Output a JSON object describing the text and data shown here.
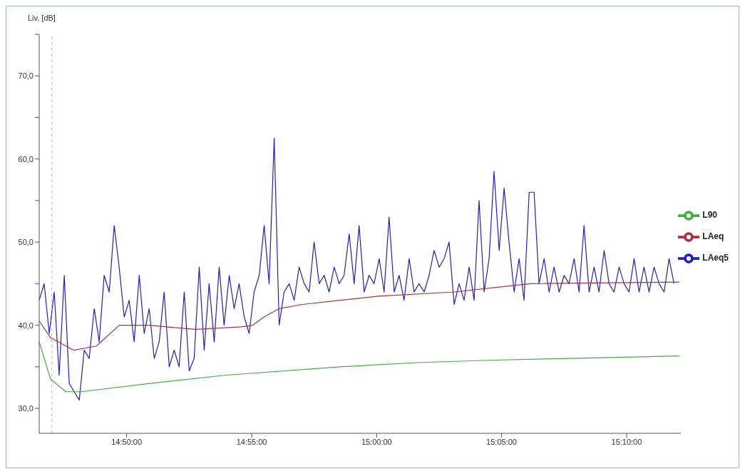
{
  "chart_data": {
    "type": "line",
    "ylabel": "Liv. [dB]",
    "xlim": [
      14.775,
      15.203
    ],
    "ylim": [
      27,
      75
    ],
    "xticks": [
      {
        "value": 14.8333,
        "label": "14:50:00"
      },
      {
        "value": 14.9167,
        "label": "14:55:00"
      },
      {
        "value": 15.0,
        "label": "15:00:00"
      },
      {
        "value": 15.0833,
        "label": "15:05:00"
      },
      {
        "value": 15.1667,
        "label": "15:10:00"
      }
    ],
    "yticks": [
      {
        "value": 30,
        "label": "30,0"
      },
      {
        "value": 35,
        "label": null
      },
      {
        "value": 40,
        "label": "40,0"
      },
      {
        "value": 45,
        "label": null
      },
      {
        "value": 50,
        "label": "50,0"
      },
      {
        "value": 55,
        "label": null
      },
      {
        "value": 60,
        "label": "60,0"
      },
      {
        "value": 65,
        "label": null
      },
      {
        "value": 70,
        "label": "70,0"
      },
      {
        "value": 75,
        "label": null
      }
    ],
    "grid": false,
    "legend": "right",
    "marker": "none",
    "line_style": "solid",
    "ref_lines": [
      {
        "axis": "x",
        "value": 14.7833,
        "label": null,
        "color": "#b8b8c8",
        "line_style": "dashed"
      }
    ],
    "series": [
      {
        "name": "LAeq5",
        "color": "#2020c0",
        "x": [
          14.775,
          14.7783,
          14.7817,
          14.785,
          14.7883,
          14.7917,
          14.795,
          14.7983,
          14.8017,
          14.805,
          14.8083,
          14.8117,
          14.815,
          14.8183,
          14.8217,
          14.825,
          14.8283,
          14.8317,
          14.835,
          14.8383,
          14.8417,
          14.845,
          14.8483,
          14.8517,
          14.855,
          14.8583,
          14.8617,
          14.865,
          14.8683,
          14.8717,
          14.875,
          14.8783,
          14.8817,
          14.885,
          14.8883,
          14.8917,
          14.895,
          14.8983,
          14.9017,
          14.905,
          14.9083,
          14.9117,
          14.915,
          14.9183,
          14.9217,
          14.925,
          14.9283,
          14.9317,
          14.935,
          14.9383,
          14.9417,
          14.945,
          14.9483,
          14.9517,
          14.955,
          14.9583,
          14.9617,
          14.965,
          14.9683,
          14.9717,
          14.975,
          14.9783,
          14.9817,
          14.985,
          14.9883,
          14.9917,
          14.995,
          14.9983,
          15.0017,
          15.005,
          15.0083,
          15.0117,
          15.015,
          15.0183,
          15.0217,
          15.025,
          15.0283,
          15.0317,
          15.035,
          15.0383,
          15.0417,
          15.045,
          15.0483,
          15.0517,
          15.055,
          15.0583,
          15.0617,
          15.065,
          15.0683,
          15.0717,
          15.075,
          15.0783,
          15.0817,
          15.085,
          15.0883,
          15.0917,
          15.095,
          15.0983,
          15.1017,
          15.105,
          15.1083,
          15.1117,
          15.115,
          15.1183,
          15.1217,
          15.125,
          15.1283,
          15.1317,
          15.135,
          15.1383,
          15.1417,
          15.145,
          15.1483,
          15.1517,
          15.155,
          15.1583,
          15.1617,
          15.165,
          15.1683,
          15.1717,
          15.175,
          15.1783,
          15.1817,
          15.185,
          15.1883,
          15.1917,
          15.195,
          15.1983
        ],
        "values": [
          43,
          45,
          39,
          44,
          34,
          46,
          33,
          32,
          31,
          37,
          36,
          42,
          38,
          46,
          44,
          52,
          47,
          41,
          43,
          38,
          46,
          39,
          42,
          36,
          38,
          44,
          35,
          37,
          35,
          44,
          34.5,
          36,
          47,
          37,
          45,
          38,
          47,
          40,
          46,
          42,
          45,
          41,
          39,
          44,
          46,
          52,
          45,
          62.5,
          40,
          44,
          45,
          43,
          47,
          45,
          44,
          50,
          45,
          46,
          44,
          47,
          45,
          46,
          51,
          45,
          52,
          44,
          46,
          45,
          48,
          44,
          53,
          44,
          46,
          43,
          48,
          44,
          45,
          44,
          46,
          49,
          47,
          48,
          50,
          42.5,
          45,
          43,
          47,
          43,
          55,
          44,
          48,
          58.5,
          49,
          56.5,
          50,
          44,
          48,
          43,
          56,
          56,
          45,
          48,
          44,
          47,
          44,
          46,
          45,
          48,
          44,
          52,
          44,
          47,
          44,
          49,
          45,
          44,
          47,
          45,
          44,
          48,
          44,
          47,
          44,
          47,
          45,
          44,
          48,
          45
        ]
      },
      {
        "name": "LAeq",
        "color": "#b03040",
        "x": [
          14.775,
          14.7826,
          14.7979,
          14.8131,
          14.8284,
          14.8487,
          14.8792,
          14.9097,
          14.9173,
          14.9249,
          14.9351,
          14.9503,
          14.9757,
          15.0011,
          15.0519,
          15.0773,
          15.1027,
          15.2018
        ],
        "values": [
          40.5,
          38.5,
          37,
          37.5,
          40,
          40,
          39.5,
          39.8,
          40,
          41,
          42,
          42.5,
          43,
          43.5,
          44,
          44.5,
          45,
          45.2
        ]
      },
      {
        "name": "L90",
        "color": "#40b040",
        "x": [
          14.775,
          14.7826,
          14.7928,
          14.8029,
          14.8487,
          14.8995,
          14.9757,
          15.0265,
          15.0773,
          15.1281,
          15.2018
        ],
        "values": [
          38,
          33.5,
          32,
          32,
          33,
          34,
          35,
          35.5,
          35.8,
          36,
          36.3
        ]
      }
    ]
  }
}
